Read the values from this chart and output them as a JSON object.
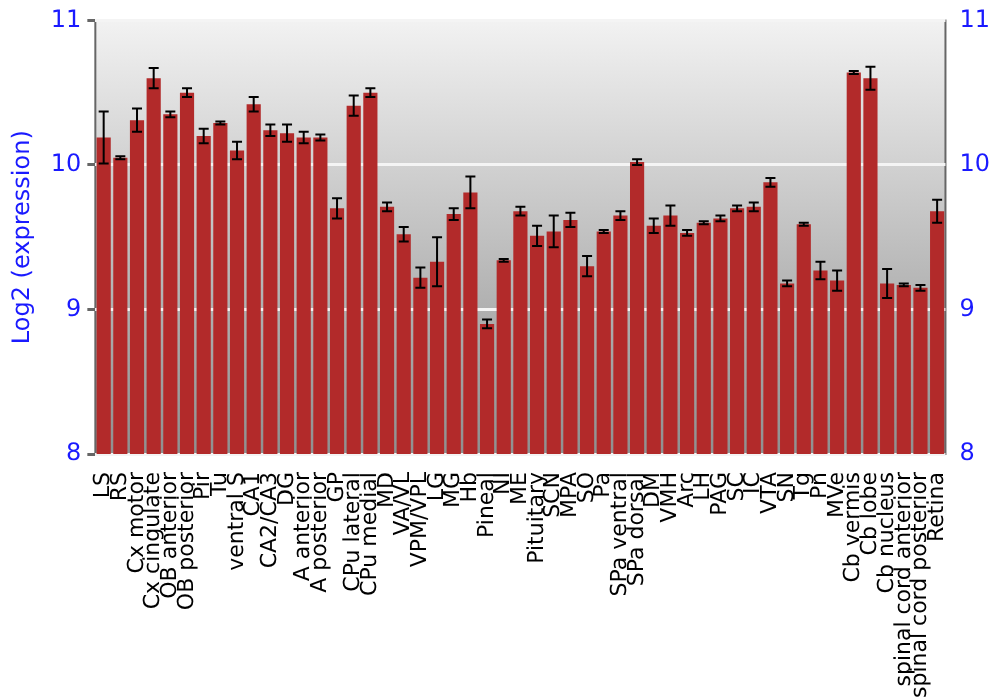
{
  "chart_data": {
    "type": "bar",
    "ylabel": "Log2 (expression)",
    "categories": [
      "LS",
      "RS",
      "Cx motor",
      "Cx cingulate",
      "OB anterior",
      "OB posterior",
      "Pir",
      "Tu",
      "ventral S",
      "CA1",
      "CA2/CA3",
      "DG",
      "A anterior",
      "A posterior",
      "GP",
      "CPu lateral",
      "CPu medial",
      "MD",
      "VA/VL",
      "VPM/VPL",
      "LG",
      "MG",
      "Hb",
      "Pineal",
      "NI",
      "ME",
      "Pituitary",
      "SCN",
      "MPA",
      "SO",
      "Pa",
      "SPa ventral",
      "SPa dorsal",
      "DM",
      "VMH",
      "Arc",
      "LH",
      "PAG",
      "SC",
      "IC",
      "VTA",
      "SN",
      "Tg",
      "Pn",
      "MVe",
      "Cb vermis",
      "Cb lobe",
      "Cb nucleus",
      "spinal cord anterior",
      "spinal cord posterior",
      "Retina"
    ],
    "values": [
      10.19,
      10.05,
      10.31,
      10.6,
      10.35,
      10.5,
      10.2,
      10.29,
      10.1,
      10.42,
      10.24,
      10.22,
      10.19,
      10.19,
      9.7,
      10.41,
      10.5,
      9.71,
      9.52,
      9.22,
      9.33,
      9.66,
      9.81,
      8.9,
      9.34,
      9.68,
      9.51,
      9.54,
      9.62,
      9.3,
      9.54,
      9.65,
      10.02,
      9.58,
      9.65,
      9.53,
      9.6,
      9.63,
      9.7,
      9.71,
      9.88,
      9.18,
      9.59,
      9.27,
      9.2,
      10.64,
      10.6,
      9.18,
      9.17,
      9.15,
      9.68
    ],
    "errors": [
      0.18,
      0.01,
      0.08,
      0.07,
      0.02,
      0.03,
      0.05,
      0.01,
      0.06,
      0.05,
      0.04,
      0.06,
      0.04,
      0.02,
      0.07,
      0.07,
      0.03,
      0.03,
      0.05,
      0.07,
      0.17,
      0.04,
      0.11,
      0.03,
      0.01,
      0.03,
      0.07,
      0.11,
      0.05,
      0.07,
      0.01,
      0.03,
      0.02,
      0.05,
      0.07,
      0.02,
      0.01,
      0.02,
      0.02,
      0.03,
      0.03,
      0.02,
      0.01,
      0.06,
      0.07,
      0.01,
      0.08,
      0.1,
      0.01,
      0.02,
      0.08
    ],
    "color": "#b22a2a",
    "ylim": [
      8,
      11
    ],
    "yticks": [
      8,
      9,
      10,
      11
    ],
    "y2lim": [
      8,
      11
    ],
    "y2ticks": [
      8,
      9,
      10,
      11
    ],
    "grid": "y",
    "legend": false
  }
}
